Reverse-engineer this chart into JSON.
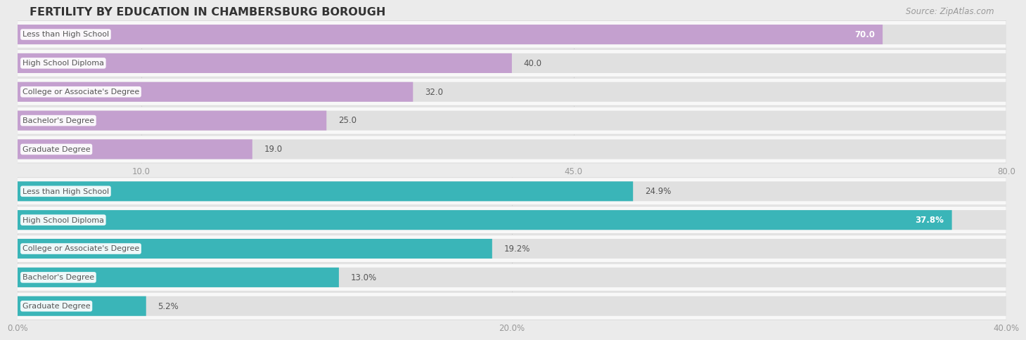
{
  "title": "FERTILITY BY EDUCATION IN CHAMBERSBURG BOROUGH",
  "source": "Source: ZipAtlas.com",
  "top_chart": {
    "categories": [
      "Less than High School",
      "High School Diploma",
      "College or Associate's Degree",
      "Bachelor's Degree",
      "Graduate Degree"
    ],
    "values": [
      70.0,
      40.0,
      32.0,
      25.0,
      19.0
    ],
    "value_labels": [
      "70.0",
      "40.0",
      "32.0",
      "25.0",
      "19.0"
    ],
    "xlim": [
      0,
      80
    ],
    "xticks": [
      10.0,
      45.0,
      80.0
    ],
    "xtick_labels": [
      "10.0",
      "45.0",
      "80.0"
    ],
    "bar_color": "#c4a0cf",
    "label_threshold": 65
  },
  "bottom_chart": {
    "categories": [
      "Less than High School",
      "High School Diploma",
      "College or Associate's Degree",
      "Bachelor's Degree",
      "Graduate Degree"
    ],
    "values": [
      24.9,
      37.8,
      19.2,
      13.0,
      5.2
    ],
    "value_labels": [
      "24.9%",
      "37.8%",
      "19.2%",
      "13.0%",
      "5.2%"
    ],
    "xlim": [
      0,
      40
    ],
    "xticks": [
      0.0,
      20.0,
      40.0
    ],
    "xtick_labels": [
      "0.0%",
      "20.0%",
      "40.0%"
    ],
    "bar_color": "#3ab5b8",
    "label_threshold": 35
  },
  "bg_color": "#ebebeb",
  "row_bg_color": "#f8f8f8",
  "row_border_color": "#d8d8d8",
  "bar_bg_color": "#e0e0e0",
  "cat_label_color": "#555555",
  "title_color": "#333333",
  "axis_label_color": "#999999",
  "grid_color": "#d0d0d0",
  "value_inside_color": "#ffffff",
  "value_outside_color": "#555555"
}
